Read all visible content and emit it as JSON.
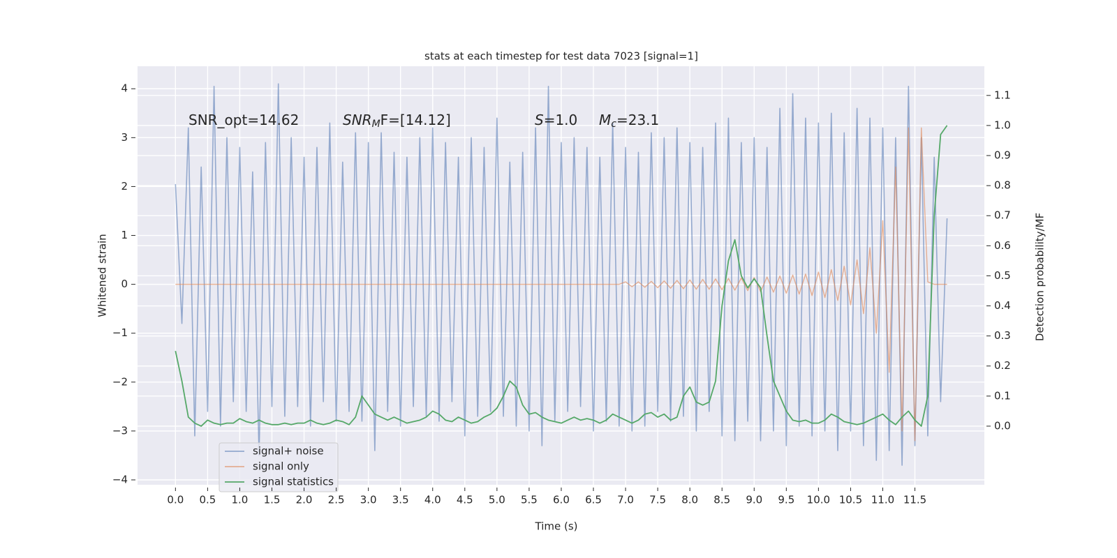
{
  "chart_data": {
    "type": "line",
    "title": "stats at each timestep for test data 7023 [signal=1]",
    "xlabel": "Time (s)",
    "ylabel": "Whitened strain",
    "y2label": "Detection probability/MF",
    "annotations": [
      [
        "SNR_opt=14.62"
      ],
      [
        "SNR",
        "M",
        "F=[14.12]"
      ],
      [
        "S",
        "=1.0"
      ],
      [
        "M",
        "c",
        "=23.1"
      ]
    ],
    "xlim": [
      -0.59,
      12.58
    ],
    "ylim": [
      -4.1,
      4.46
    ],
    "y2lim": [
      -0.195,
      1.197
    ],
    "xticks": [
      {
        "value": 0,
        "label": "0.0"
      },
      {
        "value": 0.5,
        "label": "0.5"
      },
      {
        "value": 1,
        "label": "1.0"
      },
      {
        "value": 1.5,
        "label": "1.5"
      },
      {
        "value": 2,
        "label": "2.0"
      },
      {
        "value": 2.5,
        "label": "2.5"
      },
      {
        "value": 3,
        "label": "3.0"
      },
      {
        "value": 3.5,
        "label": "3.5"
      },
      {
        "value": 4,
        "label": "4.0"
      },
      {
        "value": 4.5,
        "label": "4.5"
      },
      {
        "value": 5,
        "label": "5.0"
      },
      {
        "value": 5.5,
        "label": "5.5"
      },
      {
        "value": 6,
        "label": "6.0"
      },
      {
        "value": 6.5,
        "label": "6.5"
      },
      {
        "value": 7,
        "label": "7.0"
      },
      {
        "value": 7.5,
        "label": "7.5"
      },
      {
        "value": 8,
        "label": "8.0"
      },
      {
        "value": 8.5,
        "label": "8.5"
      },
      {
        "value": 9,
        "label": "9.0"
      },
      {
        "value": 9.5,
        "label": "9.5"
      },
      {
        "value": 10,
        "label": "10.0"
      },
      {
        "value": 10.5,
        "label": "10.5"
      },
      {
        "value": 11,
        "label": "11.0"
      },
      {
        "value": 11.5,
        "label": "11.5"
      }
    ],
    "yticks": [
      {
        "value": -4,
        "label": "−4"
      },
      {
        "value": -3,
        "label": "−3"
      },
      {
        "value": -2,
        "label": "−2"
      },
      {
        "value": -1,
        "label": "−1"
      },
      0,
      1,
      2,
      3,
      4
    ],
    "y2ticks": [
      {
        "value": 0,
        "label": "0.0"
      },
      {
        "value": 0.1,
        "label": "0.1"
      },
      {
        "value": 0.2,
        "label": "0.2"
      },
      {
        "value": 0.3,
        "label": "0.3"
      },
      {
        "value": 0.4,
        "label": "0.4"
      },
      {
        "value": 0.5,
        "label": "0.5"
      },
      {
        "value": 0.6,
        "label": "0.6"
      },
      {
        "value": 0.7,
        "label": "0.7"
      },
      {
        "value": 0.8,
        "label": "0.8"
      },
      {
        "value": 0.9,
        "label": "0.9"
      },
      {
        "value": 1,
        "label": "1.0"
      },
      {
        "value": 1.1,
        "label": "1.1"
      }
    ],
    "grid": true,
    "x": [
      0,
      0.1,
      0.2,
      0.3,
      0.4,
      0.5,
      0.6,
      0.7,
      0.8,
      0.9,
      1,
      1.1,
      1.2,
      1.3,
      1.4,
      1.5,
      1.6,
      1.7,
      1.8,
      1.9,
      2,
      2.1,
      2.2,
      2.3,
      2.4,
      2.5,
      2.6,
      2.7,
      2.8,
      2.9,
      3,
      3.1,
      3.2,
      3.3,
      3.4,
      3.5,
      3.6,
      3.7,
      3.8,
      3.9,
      4,
      4.1,
      4.2,
      4.3,
      4.4,
      4.5,
      4.6,
      4.7,
      4.8,
      4.9,
      5,
      5.1,
      5.2,
      5.3,
      5.4,
      5.5,
      5.6,
      5.7,
      5.8,
      5.9,
      6,
      6.1,
      6.2,
      6.3,
      6.4,
      6.5,
      6.6,
      6.7,
      6.8,
      6.9,
      7,
      7.1,
      7.2,
      7.3,
      7.4,
      7.5,
      7.6,
      7.7,
      7.8,
      7.9,
      8,
      8.1,
      8.2,
      8.3,
      8.4,
      8.5,
      8.6,
      8.7,
      8.8,
      8.9,
      9,
      9.1,
      9.2,
      9.3,
      9.4,
      9.5,
      9.6,
      9.7,
      9.8,
      9.9,
      10,
      10.1,
      10.2,
      10.3,
      10.4,
      10.5,
      10.6,
      10.7,
      10.8,
      10.9,
      11,
      11.1,
      11.2,
      11.3,
      11.4,
      11.5,
      11.6,
      11.7,
      11.8,
      11.9,
      12
    ],
    "series": [
      {
        "name": "signal+ noise",
        "color": "#4c72b0",
        "values": [
          2.05,
          -0.8,
          3.2,
          -3.1,
          2.4,
          -2.6,
          4.05,
          -2.9,
          3.0,
          -2.4,
          2.8,
          -2.6,
          2.3,
          -3.5,
          2.9,
          -2.5,
          4.1,
          -2.7,
          3.0,
          -2.5,
          2.6,
          -2.9,
          2.8,
          -2.4,
          3.3,
          -2.8,
          2.5,
          -2.6,
          3.1,
          -2.8,
          2.9,
          -3.4,
          3.1,
          -2.6,
          2.7,
          -2.9,
          2.6,
          -2.5,
          3.0,
          -2.7,
          3.2,
          -2.8,
          2.9,
          -2.4,
          2.6,
          -3.1,
          3.0,
          -2.7,
          2.8,
          -2.6,
          3.4,
          -2.7,
          2.5,
          -2.9,
          2.7,
          -3.0,
          3.2,
          -3.3,
          4.05,
          -2.8,
          2.9,
          -2.6,
          3.0,
          -2.5,
          2.8,
          -3.0,
          2.6,
          -2.8,
          3.3,
          -2.9,
          2.8,
          -3.0,
          2.7,
          -2.9,
          3.1,
          -2.6,
          3.0,
          -2.8,
          3.2,
          -2.7,
          2.9,
          -3.0,
          2.8,
          -2.6,
          3.3,
          -3.1,
          3.4,
          -3.2,
          2.9,
          -2.8,
          3.0,
          -3.2,
          2.8,
          -3.0,
          3.6,
          -3.3,
          3.9,
          -2.9,
          3.4,
          -3.1,
          3.3,
          -3.0,
          3.5,
          -3.4,
          3.1,
          -3.0,
          3.6,
          -3.3,
          3.4,
          -3.6,
          3.2,
          -3.4,
          3.0,
          -3.7,
          4.05,
          -3.3,
          3.0,
          -3.1,
          2.6,
          -2.4,
          1.35
        ]
      },
      {
        "name": "signal only",
        "color": "#dd8452",
        "values": [
          0,
          0,
          0,
          0,
          0,
          0,
          0,
          0,
          0,
          0,
          0,
          0,
          0,
          0,
          0,
          0,
          0,
          0,
          0,
          0,
          0,
          0,
          0,
          0,
          0,
          0,
          0,
          0,
          0,
          0,
          0,
          0,
          0,
          0,
          0,
          0,
          0,
          0,
          0,
          0,
          0,
          0,
          0,
          0,
          0,
          0,
          0,
          0,
          0,
          0,
          0,
          0,
          0,
          0,
          0,
          0,
          0,
          0,
          0,
          0,
          0,
          0,
          0,
          0,
          0,
          0,
          0,
          0,
          0,
          0,
          0.05,
          -0.05,
          0.05,
          -0.06,
          0.06,
          -0.07,
          0.07,
          -0.08,
          0.08,
          -0.09,
          0.09,
          -0.1,
          0.1,
          -0.1,
          0.11,
          -0.11,
          0.12,
          -0.12,
          0.13,
          -0.13,
          0.14,
          -0.15,
          0.15,
          -0.16,
          0.17,
          -0.18,
          0.19,
          -0.2,
          0.21,
          -0.23,
          0.25,
          -0.27,
          0.3,
          -0.33,
          0.37,
          -0.42,
          0.5,
          -0.6,
          0.75,
          -1.0,
          1.3,
          -1.8,
          2.4,
          -3.0,
          3.2,
          -3.2,
          3.2,
          0.05,
          0,
          0,
          0
        ]
      },
      {
        "name": "signal statistics",
        "color": "#55a868",
        "axis": "y2",
        "values": [
          0.25,
          0.15,
          0.03,
          0.01,
          0.0,
          0.02,
          0.01,
          0.005,
          0.01,
          0.01,
          0.025,
          0.015,
          0.01,
          0.02,
          0.01,
          0.005,
          0.005,
          0.01,
          0.005,
          0.01,
          0.01,
          0.02,
          0.01,
          0.005,
          0.01,
          0.02,
          0.015,
          0.005,
          0.03,
          0.1,
          0.07,
          0.04,
          0.03,
          0.02,
          0.03,
          0.02,
          0.01,
          0.015,
          0.02,
          0.03,
          0.05,
          0.04,
          0.02,
          0.015,
          0.03,
          0.02,
          0.01,
          0.015,
          0.03,
          0.04,
          0.06,
          0.1,
          0.15,
          0.13,
          0.07,
          0.04,
          0.045,
          0.03,
          0.02,
          0.015,
          0.01,
          0.02,
          0.03,
          0.02,
          0.025,
          0.02,
          0.01,
          0.02,
          0.04,
          0.03,
          0.02,
          0.01,
          0.02,
          0.04,
          0.045,
          0.03,
          0.04,
          0.02,
          0.03,
          0.1,
          0.13,
          0.08,
          0.07,
          0.08,
          0.15,
          0.4,
          0.55,
          0.62,
          0.5,
          0.46,
          0.49,
          0.46,
          0.3,
          0.15,
          0.1,
          0.05,
          0.02,
          0.015,
          0.02,
          0.01,
          0.01,
          0.02,
          0.04,
          0.03,
          0.015,
          0.01,
          0.005,
          0.01,
          0.02,
          0.03,
          0.04,
          0.02,
          0.005,
          0.03,
          0.05,
          0.02,
          0.0,
          0.1,
          0.7,
          0.97,
          1.0
        ]
      }
    ]
  }
}
